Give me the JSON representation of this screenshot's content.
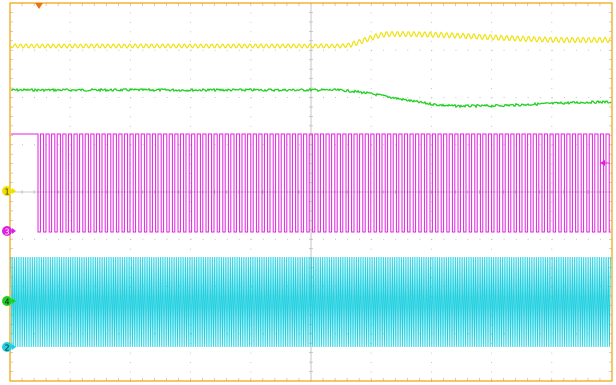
{
  "screen": {
    "frame_color": "#F2A000",
    "grid_color": "#B8B8B8",
    "background": "#FFFFFF",
    "divisions": {
      "horizontal": 10,
      "vertical": 8
    }
  },
  "trigger_marker": {
    "icon": "trigger-position-icon",
    "color": "#F07010"
  },
  "channels": [
    {
      "id": "ch1",
      "label": "1",
      "color": "#F0E000",
      "marker_icon": "ground-level-marker"
    },
    {
      "id": "ch3",
      "label": "3",
      "color": "#E020E0",
      "marker_icon": "ground-level-marker"
    },
    {
      "id": "ch4",
      "label": "4",
      "color": "#20D020",
      "marker_icon": "ground-level-marker"
    },
    {
      "id": "ch2",
      "label": "2",
      "color": "#20D0E0",
      "marker_icon": "ground-level-marker"
    }
  ],
  "trigger_level_marker": {
    "icon": "trigger-level-arrow-icon",
    "color": "#E020E0"
  }
}
